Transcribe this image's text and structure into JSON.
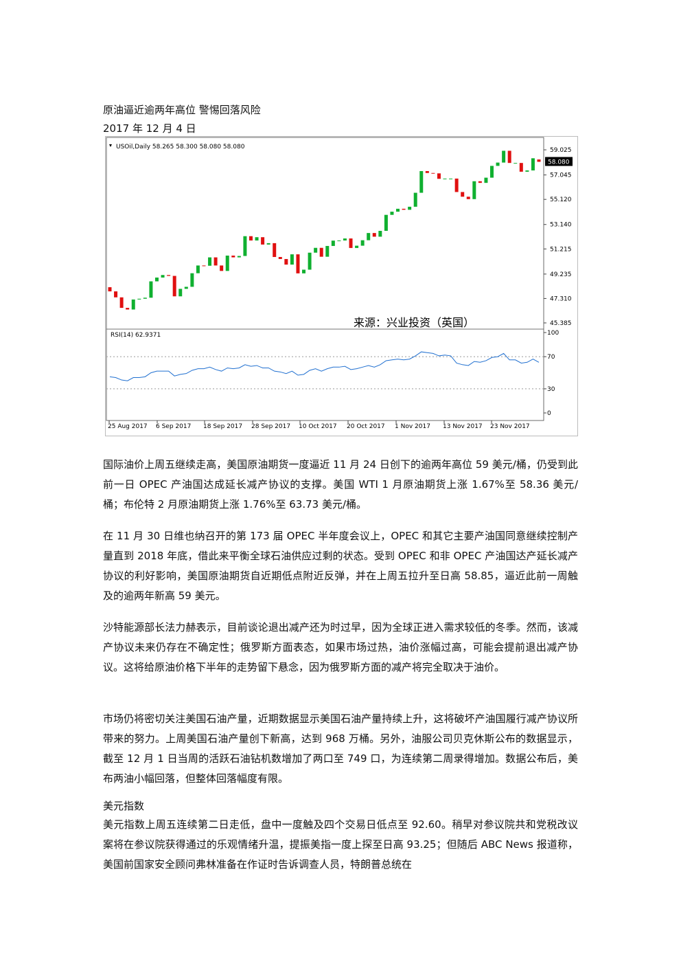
{
  "title": "原油逼近逾两年高位  警惕回落风险",
  "date": "2017 年 12 月 4 日",
  "chart_data": {
    "type": "candlestick",
    "header": "USOil,Daily  58.265 58.300 58.080 58.080",
    "price_label": "58.080",
    "source": "来源：兴业投资（英国）",
    "up_color": "#10b030",
    "down_color": "#e01010",
    "x_labels": [
      "25 Aug 2017",
      "6 Sep 2017",
      "18 Sep 2017",
      "28 Sep 2017",
      "10 Oct 2017",
      "20 Oct 2017",
      "1 Nov 2017",
      "13 Nov 2017",
      "23 Nov 2017"
    ],
    "open": [
      48.2,
      47.87,
      47.4,
      46.57,
      46.44,
      47.23,
      47.29,
      47.37,
      48.66,
      48.96,
      49.16,
      49.09,
      47.48,
      48.07,
      48.23,
      49.3,
      49.91,
      49.89,
      50.55,
      49.91,
      49.48,
      50.69,
      50.55,
      50.66,
      52.22,
      51.88,
      52.14,
      51.56,
      51.67,
      50.58,
      50.42,
      49.98,
      50.79,
      49.29,
      49.58,
      50.92,
      51.3,
      50.6,
      51.45,
      51.87,
      51.88,
      52.04,
      51.29,
      51.47,
      51.9,
      52.47,
      52.18,
      52.64,
      53.9,
      54.15,
      54.38,
      54.3,
      54.54,
      55.64,
      57.35,
      57.2,
      57.17,
      56.74,
      56.76,
      56.76,
      55.7,
      55.33,
      55.14,
      56.55,
      56.42,
      56.83,
      57.76,
      58.02,
      58.95,
      57.99,
      57.99,
      57.3,
      57.4,
      58.265
    ],
    "close": [
      47.87,
      47.4,
      46.57,
      46.44,
      47.23,
      47.29,
      47.37,
      48.66,
      48.96,
      49.16,
      49.09,
      47.48,
      48.07,
      48.23,
      49.3,
      49.91,
      49.89,
      50.55,
      49.91,
      49.48,
      50.69,
      50.55,
      50.66,
      52.22,
      51.88,
      52.14,
      51.56,
      51.67,
      50.58,
      50.42,
      49.98,
      50.79,
      49.29,
      49.58,
      50.92,
      51.3,
      50.6,
      51.45,
      51.87,
      51.88,
      52.04,
      51.29,
      51.47,
      51.9,
      52.47,
      52.18,
      52.64,
      53.9,
      54.15,
      54.38,
      54.3,
      54.54,
      55.64,
      57.35,
      57.2,
      57.17,
      56.74,
      56.76,
      56.76,
      55.7,
      55.33,
      55.14,
      56.55,
      56.42,
      56.83,
      57.76,
      58.02,
      58.95,
      57.99,
      57.99,
      57.3,
      57.4,
      58.36,
      58.08
    ],
    "ylim": [
      44.95,
      59.84
    ],
    "yticks": [
      59.025,
      57.045,
      {
        "value": 55.12,
        "label": "55.120"
      },
      {
        "value": 53.14,
        "label": "53.140"
      },
      51.215,
      49.235,
      {
        "value": 47.31,
        "label": "47.310"
      },
      45.385
    ],
    "rsi": {
      "name": "RSI(14) 62.9371",
      "color": "#1f6fd0",
      "ylim": [
        0,
        100
      ],
      "yticks": [
        0,
        30,
        70,
        100
      ],
      "values": [
        45,
        44,
        41,
        40,
        44,
        44,
        45,
        50,
        52,
        52,
        52,
        46,
        48,
        49,
        53,
        55,
        55,
        57,
        54,
        52,
        56,
        55,
        56,
        60,
        58,
        59,
        56,
        56,
        52,
        51,
        49,
        52,
        47,
        48,
        53,
        55,
        52,
        55,
        57,
        57,
        58,
        54,
        55,
        57,
        59,
        57,
        60,
        65,
        66,
        67,
        66,
        67,
        71,
        76,
        75,
        74,
        71,
        72,
        71,
        62,
        60,
        59,
        64,
        63,
        65,
        69,
        70,
        74,
        66,
        66,
        62,
        63,
        67,
        62.94
      ]
    }
  },
  "paragraphs": [
    "国际油价上周五继续走高，美国原油期货一度逼近 11 月 24 日创下的逾两年高位 59 美元/桶，仍受到此前一日 OPEC 产油国达成延长减产协议的支撑。美国 WTI 1 月原油期货上涨 1.67%至 58.36 美元/桶；布伦特 2 月原油期货上涨 1.76%至 63.73 美元/桶。",
    "在 11 月 30 日维也纳召开的第 173 届 OPEC 半年度会议上，OPEC 和其它主要产油国同意继续控制产量直到 2018 年底，借此来平衡全球石油供应过剩的状态。受到 OPEC 和非 OPEC 产油国达产延长减产协议的利好影响，美国原油期货自近期低点附近反弹，并在上周五拉升至日高 58.85，逼近此前一周触及的逾两年新高 59 美元。",
    "沙特能源部长法力赫表示，目前谈论退出减产还为时过早，因为全球正进入需求较低的冬季。然而，该减产协议未来仍存在不确定性；俄罗斯方面表态，如果市场过热，油价涨幅过高，可能会提前退出减产协议。这将给原油价格下半年的走势留下悬念，因为俄罗斯方面的减产将完全取决于油价。",
    "市场仍将密切关注美国石油产量，近期数据显示美国石油产量持续上升，这将破坏产油国履行减产协议所带来的努力。上周美国石油产量创下新高，达到 968 万桶。另外，油服公司贝克休斯公布的数据显示，截至 12 月 1 日当周的活跃石油钻机数增加了两口至 749 口，为连续第二周录得增加。数据公布后，美布两油小幅回落，但整体回落幅度有限。"
  ],
  "section_heading": "美元指数",
  "section_paragraph": "美元指数上周五连续第二日走低，盘中一度触及四个交易日低点至 92.60。稍早对参议院共和党税改议案将在参议院获得通过的乐观情绪升温，提振美指一度上探至日高 93.25；但随后 ABC News 报道称，美国前国家安全顾问弗林准备在作证时告诉调查人员，特朗普总统在"
}
